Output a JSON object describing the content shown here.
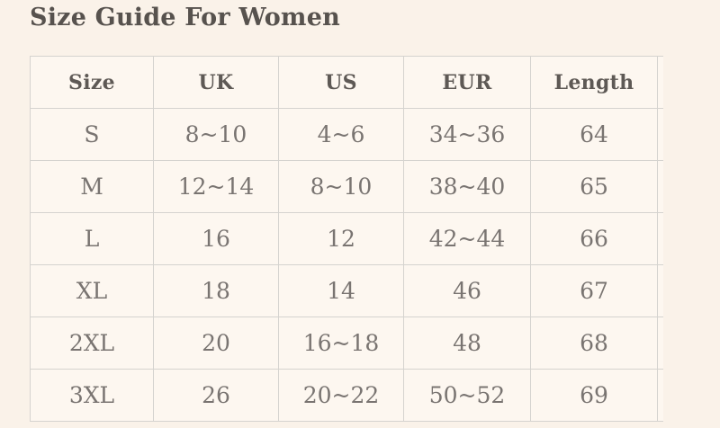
{
  "page": {
    "title": "Size Guide For Women"
  },
  "size_table": {
    "columns": [
      "Size",
      "UK",
      "US",
      "EUR",
      "Length"
    ],
    "rows": [
      [
        "S",
        "8~10",
        "4~6",
        "34~36",
        "64"
      ],
      [
        "M",
        "12~14",
        "8~10",
        "38~40",
        "65"
      ],
      [
        "L",
        "16",
        "12",
        "42~44",
        "66"
      ],
      [
        "XL",
        "18",
        "14",
        "46",
        "67"
      ],
      [
        "2XL",
        "20",
        "16~18",
        "48",
        "68"
      ],
      [
        "3XL",
        "26",
        "20~22",
        "50~52",
        "69"
      ]
    ]
  },
  "colors": {
    "page_bg": "#faf2e9",
    "cell_bg": "#fdf7f0",
    "border": "#d5d3cf",
    "title_text": "#57524e",
    "header_text": "#5e5955",
    "body_text": "#797471"
  }
}
